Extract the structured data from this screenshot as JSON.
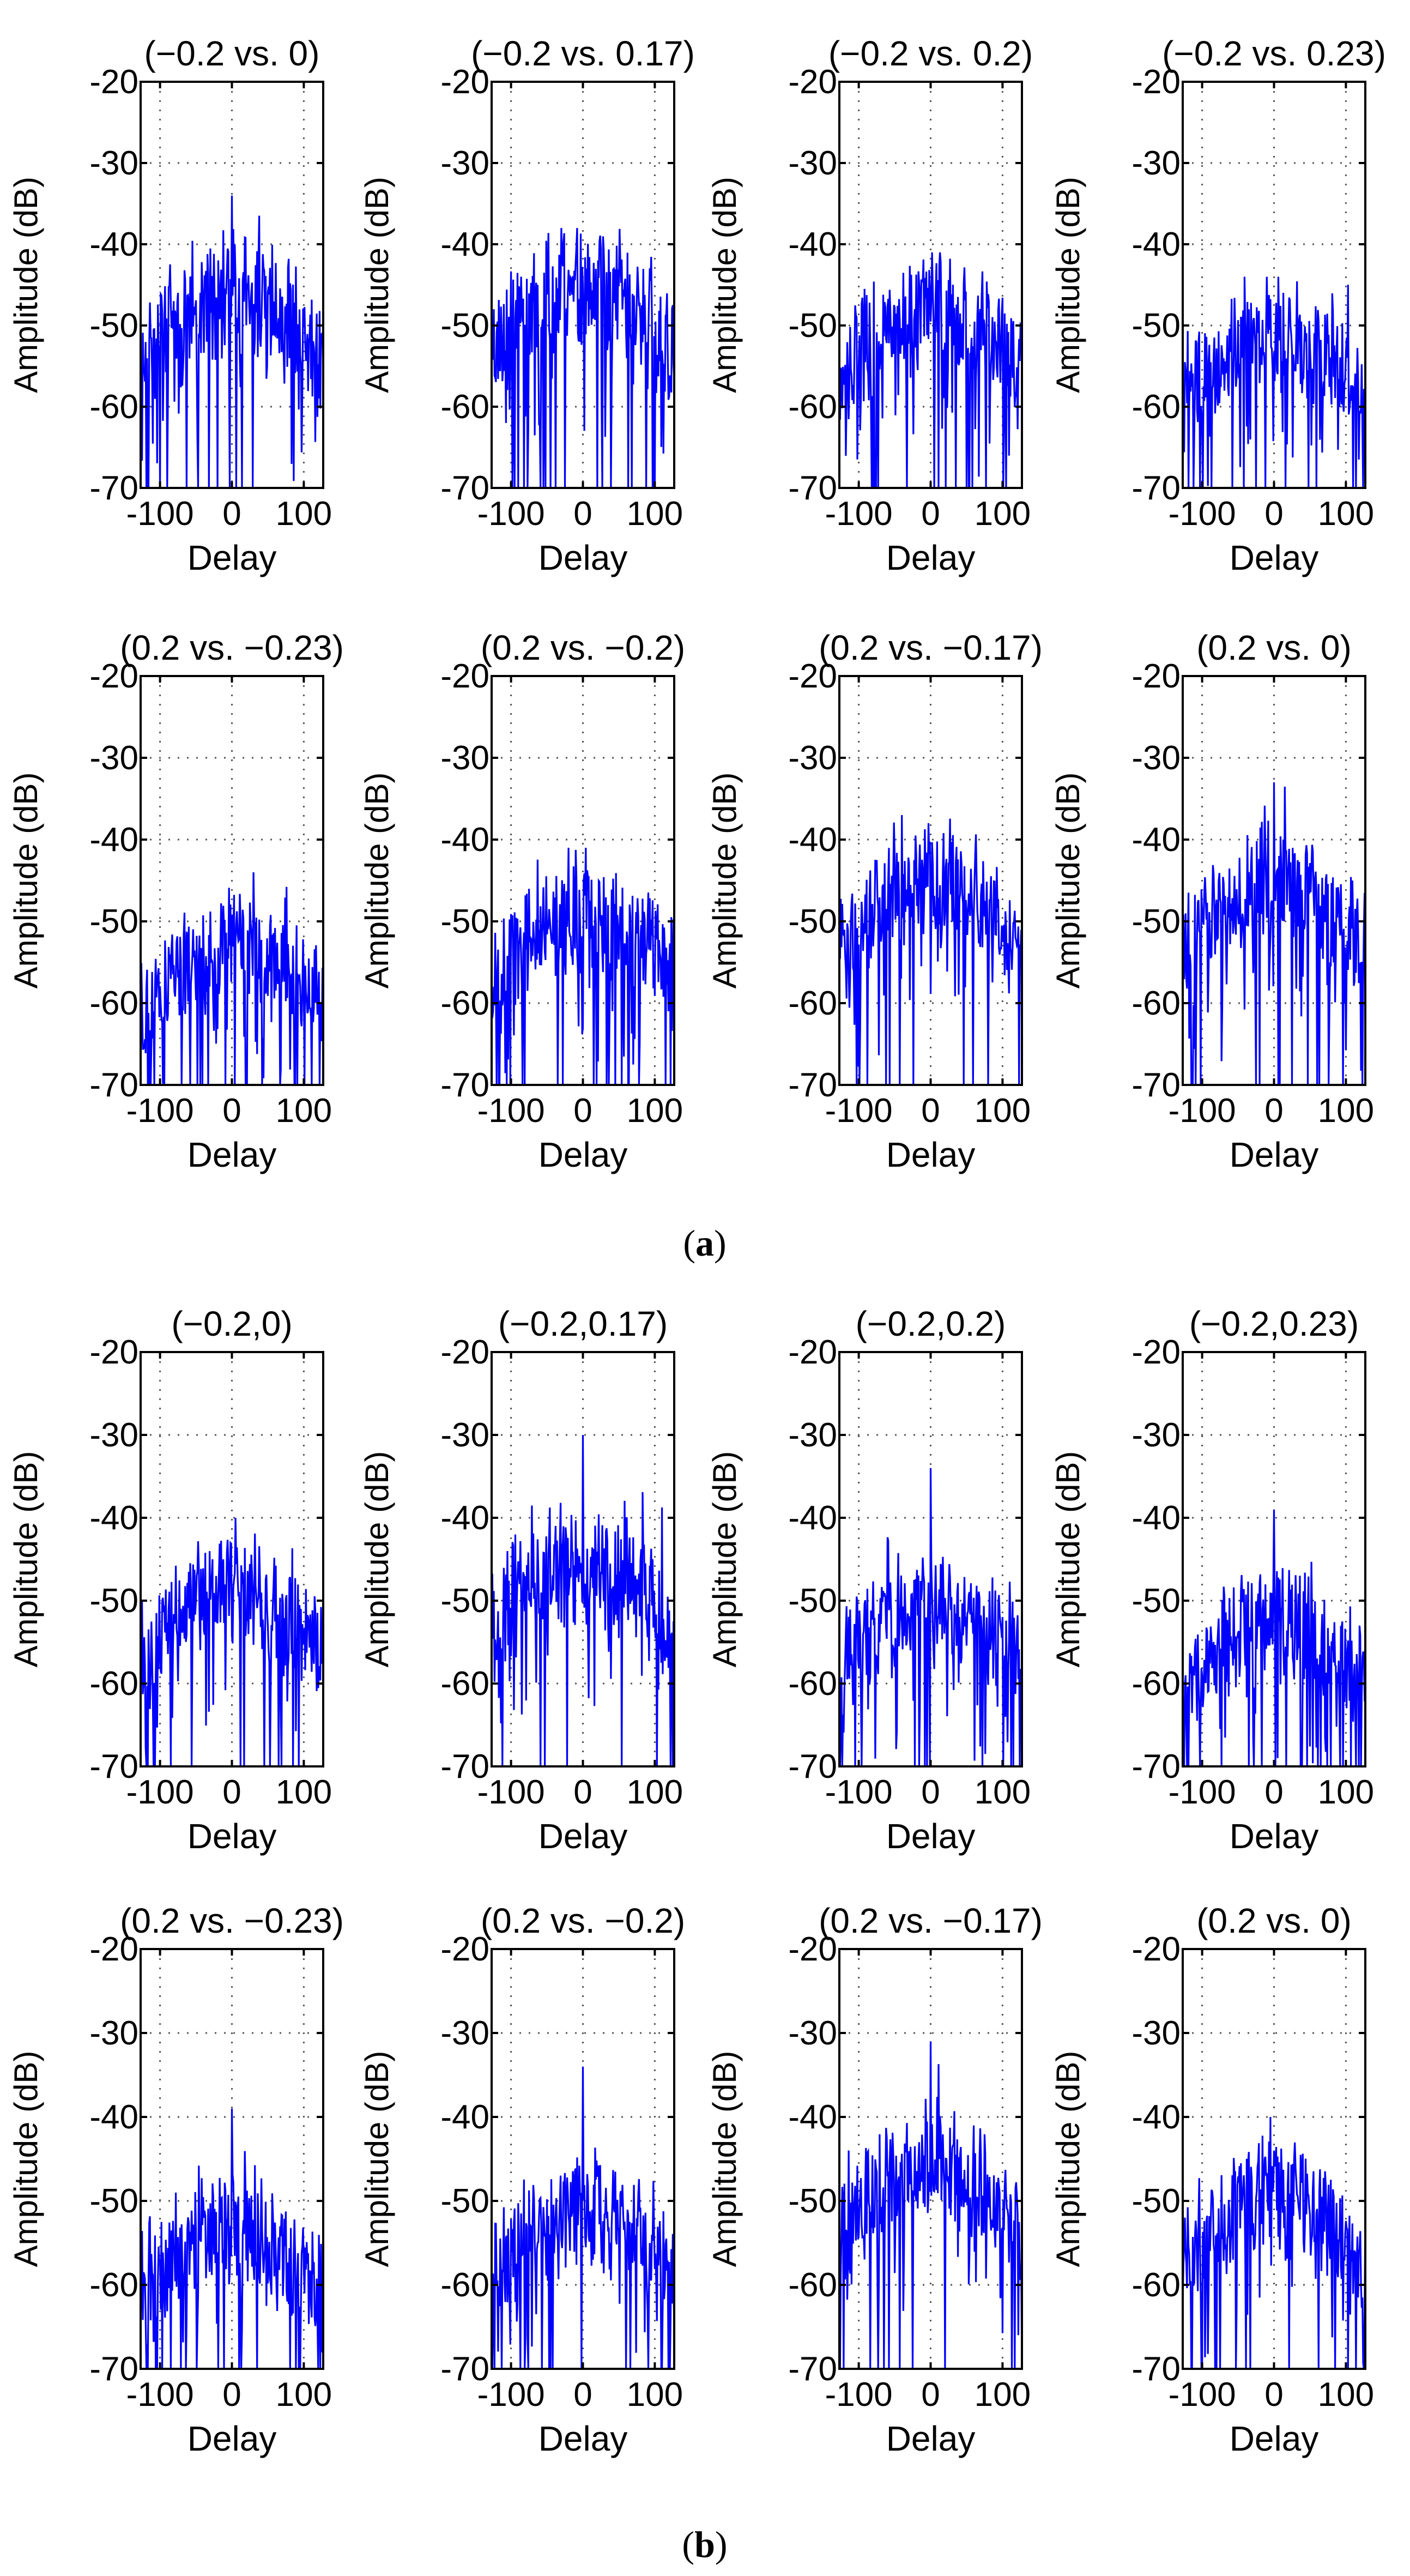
{
  "figure": {
    "captions": {
      "a": "a",
      "b": "b"
    },
    "groups": [
      {
        "id": "a",
        "caption_letter": "a",
        "panel_indices": [
          0,
          1,
          2,
          3,
          4,
          5,
          6,
          7
        ]
      },
      {
        "id": "b",
        "caption_letter": "b",
        "panel_indices": [
          8,
          9,
          10,
          11,
          12,
          13,
          14,
          15
        ]
      }
    ]
  },
  "chart_data": [
    {
      "type": "line",
      "title": "(−0.2 vs. 0)",
      "xlabel": "Delay",
      "ylabel": "Amplitude (dB)",
      "xlim": [
        -127,
        127
      ],
      "ylim": [
        -70,
        -20
      ],
      "xticks": [
        -100,
        0,
        100
      ],
      "yticks": [
        -20,
        -30,
        -40,
        -50,
        -60,
        -70
      ],
      "grid": true,
      "color": "#0000ff",
      "profile": {
        "peak": -34,
        "peak_x": 0,
        "floor": -46,
        "edge": -54,
        "spread": 10,
        "seed": 11
      },
      "y_range": [
        -70,
        -34
      ]
    },
    {
      "type": "line",
      "title": "(−0.2 vs. 0.17)",
      "xlabel": "Delay",
      "ylabel": "Amplitude (dB)",
      "xlim": [
        -127,
        127
      ],
      "ylim": [
        -70,
        -20
      ],
      "xticks": [
        -100,
        0,
        100
      ],
      "yticks": [
        -20,
        -30,
        -40,
        -50,
        -60,
        -70
      ],
      "grid": true,
      "color": "#0000ff",
      "profile": {
        "peak": -38,
        "peak_x": -8,
        "floor": -45,
        "edge": -52,
        "spread": 9,
        "seed": 23
      },
      "y_range": [
        -70,
        -38
      ]
    },
    {
      "type": "line",
      "title": "(−0.2 vs. 0.2)",
      "xlabel": "Delay",
      "ylabel": "Amplitude (dB)",
      "xlim": [
        -127,
        127
      ],
      "ylim": [
        -70,
        -20
      ],
      "xticks": [
        -100,
        0,
        100
      ],
      "yticks": [
        -20,
        -30,
        -40,
        -50,
        -60,
        -70
      ],
      "grid": true,
      "color": "#0000ff",
      "profile": {
        "peak": -41,
        "peak_x": 2,
        "floor": -48,
        "edge": -55,
        "spread": 9,
        "seed": 37
      },
      "y_range": [
        -70,
        -41
      ]
    },
    {
      "type": "line",
      "title": "(−0.2 vs. 0.23)",
      "xlabel": "Delay",
      "ylabel": "Amplitude (dB)",
      "xlim": [
        -127,
        127
      ],
      "ylim": [
        -70,
        -20
      ],
      "xticks": [
        -100,
        0,
        100
      ],
      "yticks": [
        -20,
        -30,
        -40,
        -50,
        -60,
        -70
      ],
      "grid": true,
      "color": "#0000ff",
      "profile": {
        "peak": -44,
        "peak_x": -10,
        "floor": -51,
        "edge": -59,
        "spread": 8,
        "seed": 41
      },
      "y_range": [
        -70,
        -44
      ]
    },
    {
      "type": "line",
      "title": "(0.2 vs. −0.23)",
      "xlabel": "Delay",
      "ylabel": "Amplitude (dB)",
      "xlim": [
        -127,
        127
      ],
      "ylim": [
        -70,
        -20
      ],
      "xticks": [
        -100,
        0,
        100
      ],
      "yticks": [
        -20,
        -30,
        -40,
        -50,
        -60,
        -70
      ],
      "grid": true,
      "color": "#0000ff",
      "profile": {
        "peak": -44,
        "peak_x": 30,
        "floor": -52,
        "edge": -60,
        "spread": 8,
        "seed": 53
      },
      "y_range": [
        -70,
        -44
      ]
    },
    {
      "type": "line",
      "title": "(0.2 vs. −0.2)",
      "xlabel": "Delay",
      "ylabel": "Amplitude (dB)",
      "xlim": [
        -127,
        127
      ],
      "ylim": [
        -70,
        -20
      ],
      "xticks": [
        -100,
        0,
        100
      ],
      "yticks": [
        -20,
        -30,
        -40,
        -50,
        -60,
        -70
      ],
      "grid": true,
      "color": "#0000ff",
      "profile": {
        "peak": -41,
        "peak_x": -20,
        "floor": -49,
        "edge": -56,
        "spread": 8,
        "seed": 67
      },
      "y_range": [
        -70,
        -41
      ]
    },
    {
      "type": "line",
      "title": "(0.2 vs. −0.17)",
      "xlabel": "Delay",
      "ylabel": "Amplitude (dB)",
      "xlim": [
        -127,
        127
      ],
      "ylim": [
        -70,
        -20
      ],
      "xticks": [
        -100,
        0,
        100
      ],
      "yticks": [
        -20,
        -30,
        -40,
        -50,
        -60,
        -70
      ],
      "grid": true,
      "color": "#0000ff",
      "profile": {
        "peak": -37,
        "peak_x": -40,
        "floor": -45,
        "edge": -53,
        "spread": 8,
        "seed": 71
      },
      "y_range": [
        -70,
        -37
      ]
    },
    {
      "type": "line",
      "title": "(0.2 vs. 0)",
      "xlabel": "Delay",
      "ylabel": "Amplitude (dB)",
      "xlim": [
        -127,
        127
      ],
      "ylim": [
        -70,
        -20
      ],
      "xticks": [
        -100,
        0,
        100
      ],
      "yticks": [
        -20,
        -30,
        -40,
        -50,
        -60,
        -70
      ],
      "grid": true,
      "color": "#0000ff",
      "profile": {
        "peak": -33,
        "peak_x": 0,
        "floor": -45,
        "edge": -53,
        "spread": 9,
        "seed": 83
      },
      "y_range": [
        -70,
        -33
      ]
    },
    {
      "type": "line",
      "title": "(−0.2,0)",
      "xlabel": "Delay",
      "ylabel": "Amplitude (dB)",
      "xlim": [
        -127,
        127
      ],
      "ylim": [
        -70,
        -20
      ],
      "xticks": [
        -100,
        0,
        100
      ],
      "yticks": [
        -20,
        -30,
        -40,
        -50,
        -60,
        -70
      ],
      "grid": true,
      "color": "#0000ff",
      "profile": {
        "peak": -40,
        "peak_x": 5,
        "floor": -48,
        "edge": -57,
        "spread": 8,
        "seed": 97
      },
      "y_range": [
        -70,
        -40
      ]
    },
    {
      "type": "line",
      "title": "(−0.2,0.17)",
      "xlabel": "Delay",
      "ylabel": "Amplitude (dB)",
      "xlim": [
        -127,
        127
      ],
      "ylim": [
        -70,
        -20
      ],
      "xticks": [
        -100,
        0,
        100
      ],
      "yticks": [
        -20,
        -30,
        -40,
        -50,
        -60,
        -70
      ],
      "grid": true,
      "color": "#0000ff",
      "profile": {
        "peak": -30,
        "peak_x": 0,
        "floor": -45,
        "edge": -52,
        "spread": 9,
        "seed": 101
      },
      "y_range": [
        -70,
        -30
      ]
    },
    {
      "type": "line",
      "title": "(−0.2,0.2)",
      "xlabel": "Delay",
      "ylabel": "Amplitude (dB)",
      "xlim": [
        -127,
        127
      ],
      "ylim": [
        -70,
        -20
      ],
      "xticks": [
        -100,
        0,
        100
      ],
      "yticks": [
        -20,
        -30,
        -40,
        -50,
        -60,
        -70
      ],
      "grid": true,
      "color": "#0000ff",
      "profile": {
        "peak": -34,
        "peak_x": 0,
        "floor": -50,
        "edge": -57,
        "spread": 8,
        "seed": 113
      },
      "y_range": [
        -70,
        -34
      ]
    },
    {
      "type": "line",
      "title": "(−0.2,0.23)",
      "xlabel": "Delay",
      "ylabel": "Amplitude (dB)",
      "xlim": [
        -127,
        127
      ],
      "ylim": [
        -70,
        -20
      ],
      "xticks": [
        -100,
        0,
        100
      ],
      "yticks": [
        -20,
        -30,
        -40,
        -50,
        -60,
        -70
      ],
      "grid": true,
      "color": "#0000ff",
      "profile": {
        "peak": -39,
        "peak_x": 0,
        "floor": -52,
        "edge": -60,
        "spread": 8,
        "seed": 127
      },
      "y_range": [
        -70,
        -39
      ]
    },
    {
      "type": "line",
      "title": "(0.2 vs. −0.23)",
      "xlabel": "Delay",
      "ylabel": "Amplitude (dB)",
      "xlim": [
        -127,
        127
      ],
      "ylim": [
        -70,
        -20
      ],
      "xticks": [
        -100,
        0,
        100
      ],
      "yticks": [
        -20,
        -30,
        -40,
        -50,
        -60,
        -70
      ],
      "grid": true,
      "color": "#0000ff",
      "profile": {
        "peak": -39,
        "peak_x": 0,
        "floor": -53,
        "edge": -61,
        "spread": 8,
        "seed": 131
      },
      "y_range": [
        -70,
        -39
      ]
    },
    {
      "type": "line",
      "title": "(0.2 vs. −0.2)",
      "xlabel": "Delay",
      "ylabel": "Amplitude (dB)",
      "xlim": [
        -127,
        127
      ],
      "ylim": [
        -70,
        -20
      ],
      "xticks": [
        -100,
        0,
        100
      ],
      "yticks": [
        -20,
        -30,
        -40,
        -50,
        -60,
        -70
      ],
      "grid": true,
      "color": "#0000ff",
      "profile": {
        "peak": -34,
        "peak_x": 0,
        "floor": -51,
        "edge": -58,
        "spread": 8,
        "seed": 149
      },
      "y_range": [
        -70,
        -34
      ]
    },
    {
      "type": "line",
      "title": "(0.2 vs. −0.17)",
      "xlabel": "Delay",
      "ylabel": "Amplitude (dB)",
      "xlim": [
        -127,
        127
      ],
      "ylim": [
        -70,
        -20
      ],
      "xticks": [
        -100,
        0,
        100
      ],
      "yticks": [
        -20,
        -30,
        -40,
        -50,
        -60,
        -70
      ],
      "grid": true,
      "color": "#0000ff",
      "profile": {
        "peak": -31,
        "peak_x": 0,
        "floor": -45,
        "edge": -53,
        "spread": 8,
        "seed": 157
      },
      "y_range": [
        -70,
        -31
      ]
    },
    {
      "type": "line",
      "title": "(0.2 vs. 0)",
      "xlabel": "Delay",
      "ylabel": "Amplitude (dB)",
      "xlim": [
        -127,
        127
      ],
      "ylim": [
        -70,
        -20
      ],
      "xticks": [
        -100,
        0,
        100
      ],
      "yticks": [
        -20,
        -30,
        -40,
        -50,
        -60,
        -70
      ],
      "grid": true,
      "color": "#0000ff",
      "profile": {
        "peak": -40,
        "peak_x": -5,
        "floor": -49,
        "edge": -58,
        "spread": 8,
        "seed": 163
      },
      "y_range": [
        -70,
        -40
      ]
    }
  ]
}
